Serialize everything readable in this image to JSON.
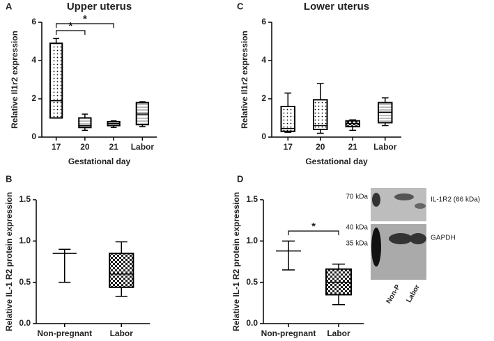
{
  "chart_data": [
    {
      "type": "box",
      "panel_label": "A",
      "title": "Upper uterus",
      "xlabel": "Gestational day",
      "ylabel": "Relative Il1r2 expression",
      "categories": [
        "17",
        "20",
        "21",
        "Labor"
      ],
      "stats": {
        "min": [
          1.0,
          0.35,
          0.5,
          0.55
        ],
        "q1": [
          1.0,
          0.5,
          0.6,
          0.65
        ],
        "median": [
          1.9,
          0.6,
          0.7,
          1.2
        ],
        "q3": [
          4.9,
          1.0,
          0.8,
          1.8
        ],
        "max": [
          5.15,
          1.2,
          0.85,
          1.85
        ]
      },
      "patterns": [
        "dots",
        "stripes",
        "stripes",
        "stripes"
      ],
      "color": "#000000",
      "ylim": [
        0,
        6
      ],
      "yticks": [
        0,
        2,
        4,
        6
      ],
      "annotations": [
        "*",
        "*"
      ]
    },
    {
      "type": "box",
      "panel_label": "B",
      "ylabel": "Relative IL-1 R2 protein expression",
      "categories": [
        "Non-pregnant",
        "Labor"
      ],
      "stats": {
        "min": [
          0.5,
          0.33
        ],
        "q1": [
          0.85,
          0.44
        ],
        "median": [
          0.85,
          0.6
        ],
        "q3": [
          0.85,
          0.85
        ],
        "max": [
          0.9,
          0.99
        ]
      },
      "patterns": [
        "none",
        "checks"
      ],
      "color": "#000000",
      "ylim": [
        0,
        1.5
      ],
      "yticks": [
        {
          "value": 0,
          "label": "0.0"
        },
        {
          "value": 0.5,
          "label": "0.5"
        },
        {
          "value": 1,
          "label": "1.0"
        },
        {
          "value": 1.5,
          "label": "1.5"
        }
      ]
    },
    {
      "type": "box",
      "panel_label": "C",
      "title": "Lower uterus",
      "xlabel": "Gestational day",
      "ylabel": "Relative Il1r2 expression",
      "categories": [
        "17",
        "20",
        "21",
        "Labor"
      ],
      "stats": {
        "min": [
          0.25,
          0.2,
          0.35,
          0.6
        ],
        "q1": [
          0.3,
          0.4,
          0.55,
          0.75
        ],
        "median": [
          0.45,
          0.6,
          0.7,
          1.3
        ],
        "q3": [
          1.6,
          1.95,
          0.85,
          1.8
        ],
        "max": [
          2.3,
          2.8,
          0.9,
          2.05
        ]
      },
      "patterns": [
        "dots",
        "dots",
        "checks",
        "stripes"
      ],
      "color": "#000000",
      "ylim": [
        0,
        6
      ],
      "yticks": [
        0,
        2,
        4,
        6
      ]
    },
    {
      "type": "box",
      "panel_label": "D",
      "ylabel": "Relative IL-1 R2 protein expression",
      "categories": [
        "Non-pregnant",
        "Labor"
      ],
      "stats": {
        "min": [
          0.65,
          0.23
        ],
        "q1": [
          0.88,
          0.35
        ],
        "median": [
          0.88,
          0.5
        ],
        "q3": [
          0.88,
          0.66
        ],
        "max": [
          1.0,
          0.72
        ]
      },
      "patterns": [
        "none",
        "checks"
      ],
      "color": "#000000",
      "ylim": [
        0,
        1.5
      ],
      "yticks": [
        {
          "value": 0,
          "label": "0.0"
        },
        {
          "value": 0.5,
          "label": "0.5"
        },
        {
          "value": 1,
          "label": "1.0"
        },
        {
          "value": 1.5,
          "label": "1.5"
        }
      ],
      "annotations": [
        "*"
      ],
      "inset": {
        "marker_top": "70 kDa",
        "marker_mid": "40 kDa",
        "marker_low": "35 kDa",
        "band_top": "IL-1R2 (66 kDa)",
        "band_bottom": "GAPDH",
        "lanes": [
          "Non-P",
          "Labor"
        ]
      }
    }
  ]
}
